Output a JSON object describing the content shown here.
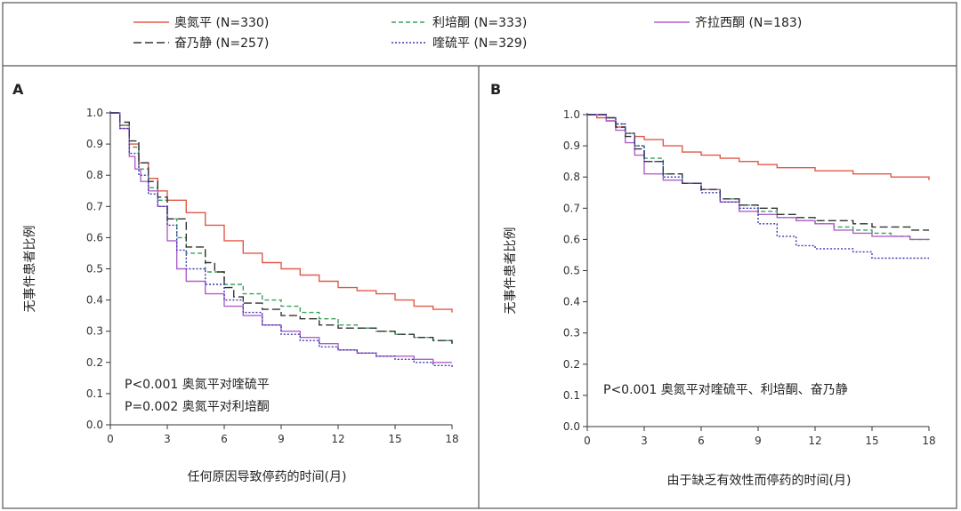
{
  "legend": [
    {
      "label": "奥氮平 (N=330)",
      "color": "#e05a4a",
      "dash": "solid"
    },
    {
      "label": "利培酮 (N=333)",
      "color": "#3aa05a",
      "dash": "dashed"
    },
    {
      "label": "齐拉西酮 (N=183)",
      "color": "#b060c8",
      "dash": "solid"
    },
    {
      "label": "奋乃静 (N=257)",
      "color": "#333333",
      "dash": "longdash"
    },
    {
      "label": "喹硫平 (N=329)",
      "color": "#3a3ab0",
      "dash": "dotted"
    }
  ],
  "chart_data": [
    {
      "type": "line",
      "panel_label": "A",
      "xlabel": "任何原因导致停药的时间(月)",
      "ylabel": "无事件患者比例",
      "xlim": [
        0,
        18
      ],
      "ylim": [
        0,
        1.0
      ],
      "xticks": [
        0,
        3,
        6,
        9,
        12,
        15,
        18
      ],
      "yticks": [
        "0.0",
        "0.1",
        "0.2",
        "0.3",
        "0.4",
        "0.5",
        "0.6",
        "0.7",
        "0.8",
        "0.9",
        "1.0"
      ],
      "annotations": [
        "P<0.001 奥氮平对喹硫平",
        "P=0.002 奥氮平对利培酮"
      ],
      "series": [
        {
          "name": "奥氮平 (N=330)",
          "x": [
            0,
            0.5,
            1,
            1.5,
            2,
            2.5,
            3,
            4,
            5,
            6,
            7,
            8,
            9,
            10,
            11,
            12,
            13,
            14,
            15,
            16,
            17,
            18
          ],
          "y": [
            1.0,
            0.96,
            0.9,
            0.84,
            0.79,
            0.75,
            0.72,
            0.68,
            0.64,
            0.59,
            0.55,
            0.52,
            0.5,
            0.48,
            0.46,
            0.44,
            0.43,
            0.42,
            0.4,
            0.38,
            0.37,
            0.36
          ]
        },
        {
          "name": "利培酮 (N=333)",
          "x": [
            0,
            0.5,
            1,
            1.5,
            2,
            2.5,
            3,
            3.5,
            4,
            5,
            6,
            7,
            8,
            9,
            10,
            11,
            12,
            13,
            14,
            15,
            16,
            17,
            18
          ],
          "y": [
            1.0,
            0.96,
            0.89,
            0.82,
            0.76,
            0.72,
            0.66,
            0.6,
            0.55,
            0.49,
            0.45,
            0.42,
            0.4,
            0.38,
            0.36,
            0.34,
            0.32,
            0.31,
            0.3,
            0.29,
            0.28,
            0.27,
            0.26
          ]
        },
        {
          "name": "齐拉西酮 (N=183)",
          "x": [
            0,
            0.5,
            1,
            1.3,
            1.6,
            2,
            2.5,
            3,
            3.5,
            4,
            5,
            6,
            7,
            8,
            9,
            10,
            11,
            12,
            13,
            14,
            15,
            16,
            17,
            18
          ],
          "y": [
            1.0,
            0.95,
            0.86,
            0.82,
            0.78,
            0.75,
            0.7,
            0.59,
            0.5,
            0.46,
            0.42,
            0.38,
            0.35,
            0.32,
            0.3,
            0.28,
            0.26,
            0.24,
            0.23,
            0.22,
            0.22,
            0.21,
            0.2,
            0.2
          ]
        },
        {
          "name": "奋乃静 (N=257)",
          "x": [
            0,
            0.5,
            1,
            1.5,
            2,
            2.5,
            3,
            4,
            5,
            5.5,
            6,
            6.5,
            7,
            8,
            9,
            10,
            11,
            12,
            13,
            14,
            15,
            16,
            17,
            18
          ],
          "y": [
            1.0,
            0.97,
            0.91,
            0.84,
            0.78,
            0.73,
            0.66,
            0.57,
            0.52,
            0.49,
            0.44,
            0.41,
            0.39,
            0.37,
            0.35,
            0.34,
            0.32,
            0.31,
            0.31,
            0.3,
            0.29,
            0.28,
            0.27,
            0.26
          ]
        },
        {
          "name": "喹硫平 (N=329)",
          "x": [
            0,
            0.5,
            1,
            1.5,
            2,
            2.5,
            3,
            3.5,
            4,
            5,
            6,
            7,
            8,
            9,
            10,
            11,
            12,
            13,
            14,
            15,
            16,
            17,
            18
          ],
          "y": [
            1.0,
            0.95,
            0.87,
            0.8,
            0.74,
            0.7,
            0.64,
            0.56,
            0.5,
            0.45,
            0.4,
            0.36,
            0.32,
            0.29,
            0.27,
            0.25,
            0.24,
            0.23,
            0.22,
            0.21,
            0.2,
            0.19,
            0.18
          ]
        }
      ]
    },
    {
      "type": "line",
      "panel_label": "B",
      "xlabel": "由于缺乏有效性而停药的时间(月)",
      "ylabel": "无事件患者比例",
      "xlim": [
        0,
        18
      ],
      "ylim": [
        0,
        1.0
      ],
      "xticks": [
        0,
        3,
        6,
        9,
        12,
        15,
        18
      ],
      "yticks": [
        "0.0",
        "0.1",
        "0.2",
        "0.3",
        "0.4",
        "0.5",
        "0.6",
        "0.7",
        "0.8",
        "0.9",
        "1.0"
      ],
      "annotations": [
        "P<0.001 奥氮平对喹硫平、利培酮、奋乃静"
      ],
      "series": [
        {
          "name": "奥氮平 (N=330)",
          "x": [
            0,
            0.5,
            1,
            1.5,
            2,
            2.5,
            3,
            4,
            5,
            6,
            7,
            8,
            9,
            10,
            11,
            12,
            13,
            14,
            15,
            16,
            17,
            18
          ],
          "y": [
            1.0,
            0.99,
            0.98,
            0.96,
            0.94,
            0.93,
            0.92,
            0.9,
            0.88,
            0.87,
            0.86,
            0.85,
            0.84,
            0.83,
            0.83,
            0.82,
            0.82,
            0.81,
            0.81,
            0.8,
            0.8,
            0.79
          ]
        },
        {
          "name": "利培酮 (N=333)",
          "x": [
            0,
            0.5,
            1,
            1.5,
            2,
            2.5,
            3,
            4,
            5,
            6,
            7,
            8,
            9,
            10,
            11,
            12,
            13,
            14,
            15,
            16,
            17,
            18
          ],
          "y": [
            1.0,
            1.0,
            0.99,
            0.97,
            0.94,
            0.9,
            0.86,
            0.81,
            0.78,
            0.76,
            0.73,
            0.71,
            0.69,
            0.67,
            0.66,
            0.65,
            0.64,
            0.63,
            0.62,
            0.61,
            0.6,
            0.59
          ]
        },
        {
          "name": "齐拉西酮 (N=183)",
          "x": [
            0,
            0.5,
            1,
            1.5,
            2,
            2.5,
            3,
            4,
            5,
            6,
            7,
            8,
            9,
            10,
            11,
            12,
            13,
            14,
            15,
            16,
            17,
            18
          ],
          "y": [
            1.0,
            1.0,
            0.98,
            0.95,
            0.91,
            0.87,
            0.81,
            0.79,
            0.78,
            0.76,
            0.72,
            0.69,
            0.68,
            0.67,
            0.66,
            0.65,
            0.63,
            0.62,
            0.61,
            0.61,
            0.6,
            0.6
          ]
        },
        {
          "name": "奋乃静 (N=257)",
          "x": [
            0,
            0.5,
            1,
            1.5,
            2,
            2.5,
            3,
            4,
            5,
            6,
            7,
            8,
            9,
            10,
            11,
            12,
            13,
            14,
            15,
            16,
            17,
            18
          ],
          "y": [
            1.0,
            1.0,
            0.99,
            0.96,
            0.93,
            0.89,
            0.85,
            0.81,
            0.78,
            0.76,
            0.73,
            0.71,
            0.7,
            0.68,
            0.67,
            0.66,
            0.66,
            0.65,
            0.64,
            0.64,
            0.63,
            0.63
          ]
        },
        {
          "name": "喹硫平 (N=329)",
          "x": [
            0,
            0.5,
            1,
            1.5,
            2,
            2.5,
            3,
            4,
            5,
            6,
            7,
            8,
            9,
            10,
            11,
            12,
            13,
            14,
            15,
            16,
            17,
            18
          ],
          "y": [
            1.0,
            1.0,
            0.99,
            0.97,
            0.94,
            0.9,
            0.85,
            0.8,
            0.78,
            0.75,
            0.72,
            0.7,
            0.65,
            0.61,
            0.58,
            0.57,
            0.57,
            0.56,
            0.54,
            0.54,
            0.54,
            0.54
          ]
        }
      ]
    }
  ]
}
